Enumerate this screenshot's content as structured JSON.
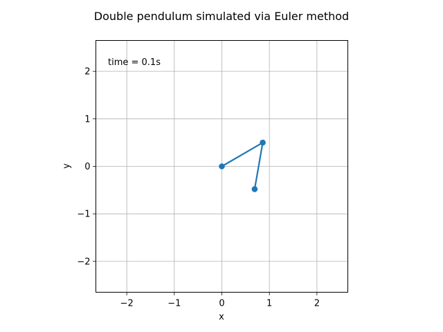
{
  "chart_data": {
    "type": "line",
    "title": "Double pendulum simulated via Euler method",
    "xlabel": "x",
    "ylabel": "y",
    "xlim": [
      -2.65,
      2.65
    ],
    "ylim": [
      -2.65,
      2.65
    ],
    "x_ticks": [
      -2,
      -1,
      0,
      1,
      2
    ],
    "y_ticks": [
      -2,
      -1,
      0,
      1,
      2
    ],
    "x_tick_labels": [
      "−2",
      "−1",
      "0",
      "1",
      "2"
    ],
    "y_tick_labels": [
      "−2",
      "−1",
      "0",
      "1",
      "2"
    ],
    "grid": true,
    "annotation": "time = 0.1s",
    "series": [
      {
        "x": [
          0.0,
          0.86,
          0.69
        ],
        "y": [
          0.0,
          0.5,
          -0.48
        ],
        "color": "#1f77b4",
        "marker": "circle"
      }
    ]
  }
}
